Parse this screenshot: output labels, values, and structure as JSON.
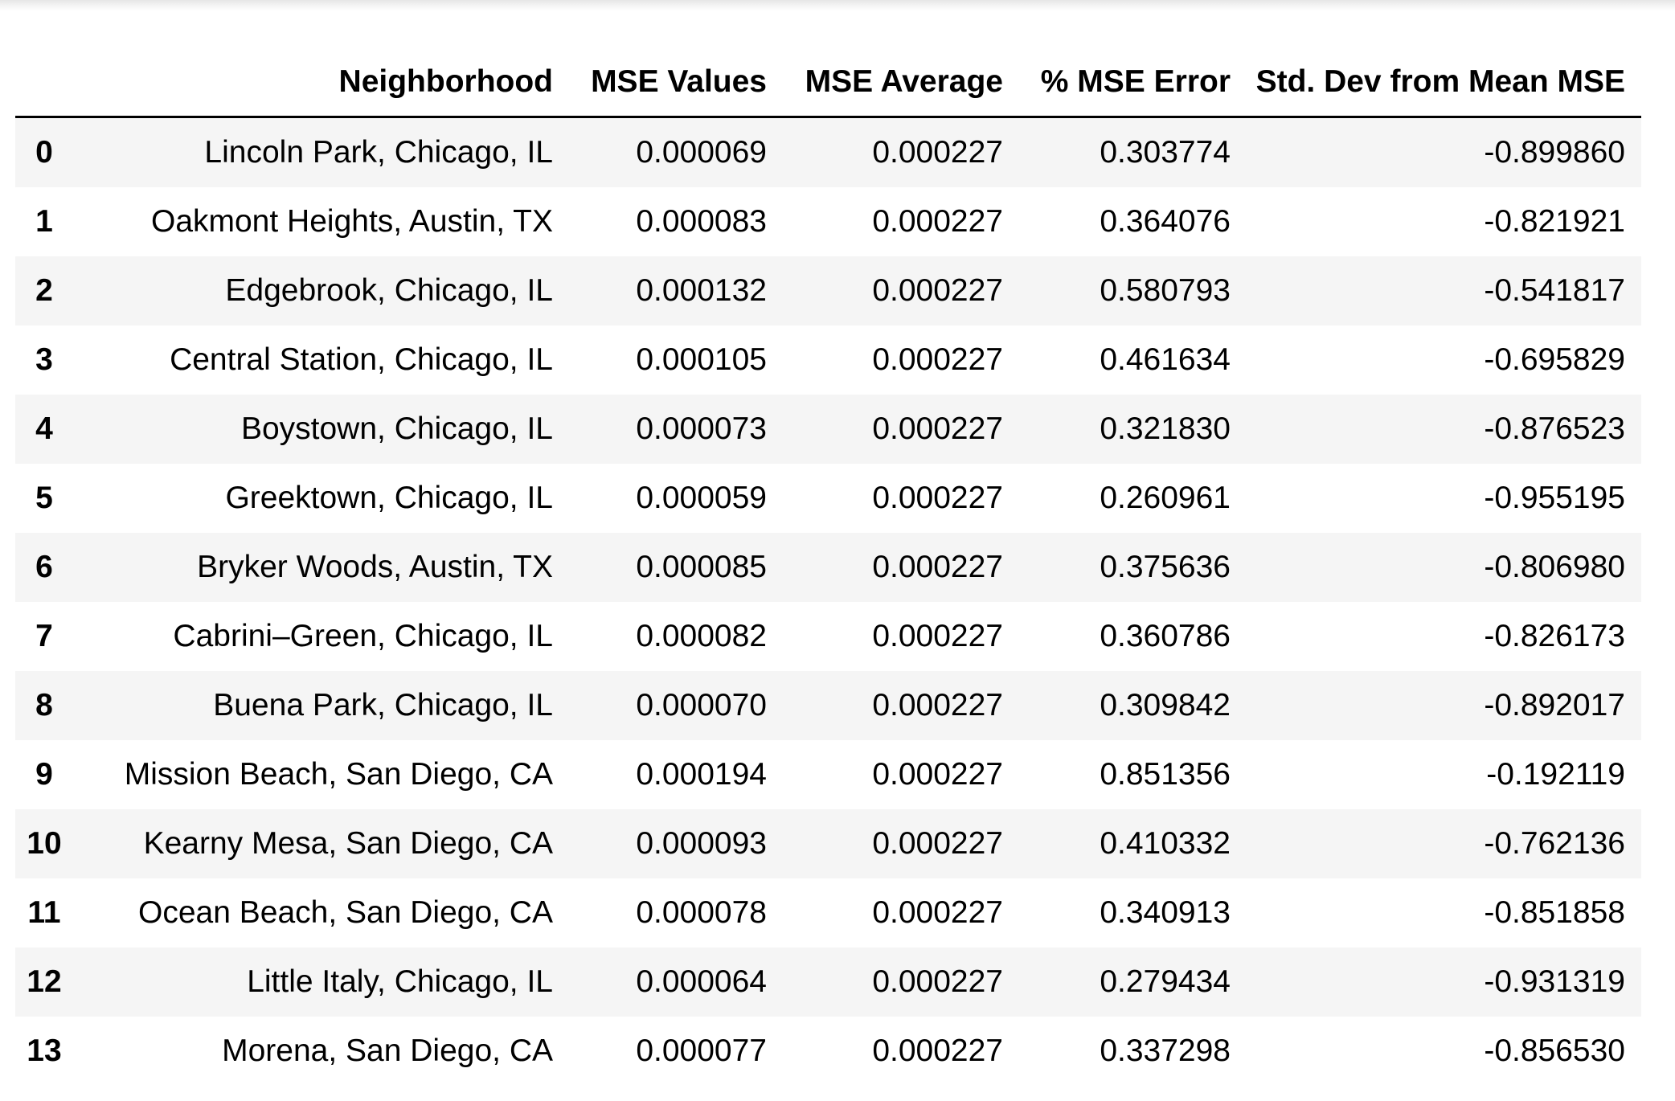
{
  "table": {
    "columns": [
      "",
      "Neighborhood",
      "MSE Values",
      "MSE Average",
      "% MSE Error",
      "Std. Dev from Mean MSE"
    ],
    "rows": [
      {
        "index": "0",
        "neighborhood": "Lincoln Park, Chicago, IL",
        "mse_values": "0.000069",
        "mse_average": "0.000227",
        "pct_mse_error": "0.303774",
        "std_dev": "-0.899860"
      },
      {
        "index": "1",
        "neighborhood": "Oakmont Heights, Austin, TX",
        "mse_values": "0.000083",
        "mse_average": "0.000227",
        "pct_mse_error": "0.364076",
        "std_dev": "-0.821921"
      },
      {
        "index": "2",
        "neighborhood": "Edgebrook, Chicago, IL",
        "mse_values": "0.000132",
        "mse_average": "0.000227",
        "pct_mse_error": "0.580793",
        "std_dev": "-0.541817"
      },
      {
        "index": "3",
        "neighborhood": "Central Station, Chicago, IL",
        "mse_values": "0.000105",
        "mse_average": "0.000227",
        "pct_mse_error": "0.461634",
        "std_dev": "-0.695829"
      },
      {
        "index": "4",
        "neighborhood": "Boystown, Chicago, IL",
        "mse_values": "0.000073",
        "mse_average": "0.000227",
        "pct_mse_error": "0.321830",
        "std_dev": "-0.876523"
      },
      {
        "index": "5",
        "neighborhood": "Greektown, Chicago, IL",
        "mse_values": "0.000059",
        "mse_average": "0.000227",
        "pct_mse_error": "0.260961",
        "std_dev": "-0.955195"
      },
      {
        "index": "6",
        "neighborhood": "Bryker Woods, Austin, TX",
        "mse_values": "0.000085",
        "mse_average": "0.000227",
        "pct_mse_error": "0.375636",
        "std_dev": "-0.806980"
      },
      {
        "index": "7",
        "neighborhood": "Cabrini–Green, Chicago, IL",
        "mse_values": "0.000082",
        "mse_average": "0.000227",
        "pct_mse_error": "0.360786",
        "std_dev": "-0.826173"
      },
      {
        "index": "8",
        "neighborhood": "Buena Park, Chicago, IL",
        "mse_values": "0.000070",
        "mse_average": "0.000227",
        "pct_mse_error": "0.309842",
        "std_dev": "-0.892017"
      },
      {
        "index": "9",
        "neighborhood": "Mission Beach, San Diego, CA",
        "mse_values": "0.000194",
        "mse_average": "0.000227",
        "pct_mse_error": "0.851356",
        "std_dev": "-0.192119"
      },
      {
        "index": "10",
        "neighborhood": "Kearny Mesa, San Diego, CA",
        "mse_values": "0.000093",
        "mse_average": "0.000227",
        "pct_mse_error": "0.410332",
        "std_dev": "-0.762136"
      },
      {
        "index": "11",
        "neighborhood": "Ocean Beach, San Diego, CA",
        "mse_values": "0.000078",
        "mse_average": "0.000227",
        "pct_mse_error": "0.340913",
        "std_dev": "-0.851858"
      },
      {
        "index": "12",
        "neighborhood": "Little Italy, Chicago, IL",
        "mse_values": "0.000064",
        "mse_average": "0.000227",
        "pct_mse_error": "0.279434",
        "std_dev": "-0.931319"
      },
      {
        "index": "13",
        "neighborhood": "Morena, San Diego, CA",
        "mse_values": "0.000077",
        "mse_average": "0.000227",
        "pct_mse_error": "0.337298",
        "std_dev": "-0.856530"
      }
    ]
  },
  "colors": {
    "striped_row": "#f5f5f5",
    "header_rule": "#000000",
    "text": "#000000"
  }
}
